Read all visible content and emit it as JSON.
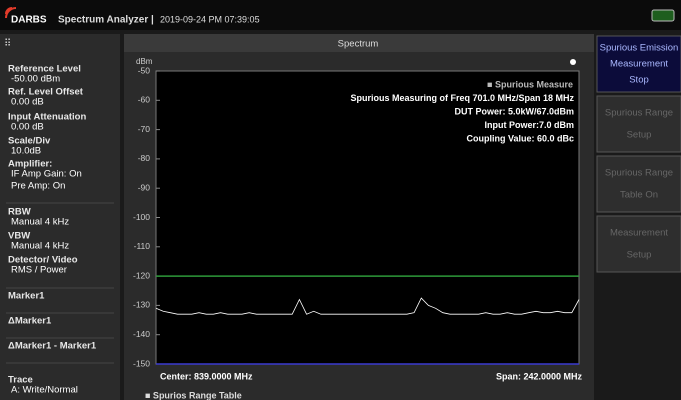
{
  "header": {
    "logo": "DARBS",
    "title": "Spectrum Analyzer |",
    "datetime": "2019-09-24 PM 07:39:05"
  },
  "left_panel": {
    "items": [
      {
        "label": "Reference Level",
        "lines": [
          "-50.00 dBm"
        ]
      },
      {
        "label": "Ref. Level Offset",
        "lines": [
          "0.00 dB"
        ]
      },
      {
        "label": "Input Attenuation",
        "lines": [
          "0.00 dB"
        ]
      },
      {
        "label": "Scale/Div",
        "lines": [
          "10.0dB"
        ]
      },
      {
        "label": "Amplifier:",
        "lines": [
          "IF Amp Gain: On",
          "Pre Amp: On"
        ]
      },
      {
        "label": "RBW",
        "lines": [
          "Manual 4 kHz"
        ]
      },
      {
        "label": "VBW",
        "lines": [
          "Manual 4 kHz"
        ]
      },
      {
        "label": "Detector/ Video",
        "lines": [
          "RMS / Power"
        ]
      },
      {
        "label": "Marker1",
        "lines": []
      },
      {
        "label": "ΔMarker1",
        "lines": []
      },
      {
        "label": "ΔMarker1 - Marker1",
        "lines": []
      },
      {
        "label": "Trace",
        "lines": [
          "A: Write/Normal"
        ]
      }
    ]
  },
  "right_panel": {
    "buttons": [
      {
        "lines": [
          "Spurious Emission",
          "Measurement",
          "Stop"
        ],
        "enabled": true
      },
      {
        "lines": [
          "Spurious Range",
          "Setup"
        ],
        "enabled": false
      },
      {
        "lines": [
          "Spurious Range",
          "Table On"
        ],
        "enabled": false
      },
      {
        "lines": [
          "Measurement",
          "Setup"
        ],
        "enabled": false
      }
    ]
  },
  "chart_data": {
    "type": "line",
    "title": "Spectrum",
    "y_label": "dBm",
    "ylim": [
      -150,
      -50
    ],
    "yticks": [
      -50,
      -60,
      -70,
      -80,
      -90,
      -100,
      -110,
      -120,
      -130,
      -140,
      -150
    ],
    "grid": false,
    "color": "#ffffff",
    "values": [
      -131,
      -132,
      -132.5,
      -133,
      -133,
      -133,
      -132.5,
      -133,
      -133,
      -132.5,
      -133,
      -133,
      -133,
      -132.5,
      -133,
      -133,
      -133,
      -133,
      -133,
      -133,
      -128,
      -133,
      -132,
      -133,
      -133,
      -133,
      -133,
      -133,
      -133,
      -133,
      -133,
      -133,
      -133,
      -133,
      -133,
      -133,
      -132.5,
      -127.5,
      -130,
      -131,
      -132.5,
      -133,
      -133,
      -133,
      -133,
      -133,
      -132.5,
      -133,
      -133,
      -132.5,
      -133,
      -133,
      -132.5,
      -132,
      -132.5,
      -132.5,
      -132,
      -132.5,
      -132.5,
      -128
    ],
    "limit_line": {
      "value": -120,
      "color": "#2e9a3a"
    },
    "annotations": [
      "■ Spurious Measure",
      "Spurious Measuring of Freq 701.0 MHz/Span 18 MHz",
      "DUT Power: 5.0kW/67.0dBm",
      "Input Power:7.0 dBm",
      "Coupling Value: 60.0 dBc"
    ],
    "center": "Center: 839.0000 MHz",
    "span": "Span: 242.0000 MHz"
  },
  "table_title": "■ Spurios Range Table"
}
